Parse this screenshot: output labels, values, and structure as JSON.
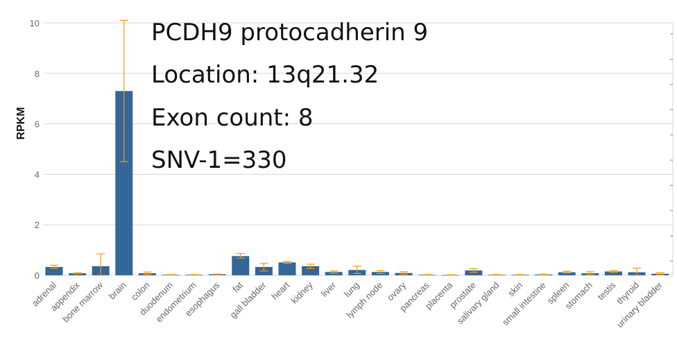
{
  "chart_data": {
    "type": "bar",
    "ylabel": "RPKM",
    "xlabel": "",
    "ylim": [
      0,
      10
    ],
    "yticks": [
      0,
      2,
      4,
      6,
      8,
      10
    ],
    "grid": true,
    "bar_color": "#336699",
    "error_color": "#ff9900",
    "categories": [
      "adrenal",
      "appendix",
      "bone marrow",
      "brain",
      "colon",
      "duodenum",
      "endometrium",
      "esophagus",
      "fat",
      "gall bladder",
      "heart",
      "kidney",
      "liver",
      "lung",
      "lymph node",
      "ovary",
      "pancreas",
      "placenta",
      "prostate",
      "salivary gland",
      "skin",
      "small intestine",
      "spleen",
      "stomach",
      "testis",
      "thyroid",
      "urinary bladder"
    ],
    "values": [
      0.33,
      0.08,
      0.36,
      7.3,
      0.08,
      0.02,
      0.02,
      0.04,
      0.76,
      0.33,
      0.51,
      0.36,
      0.13,
      0.21,
      0.13,
      0.09,
      0.02,
      0.01,
      0.19,
      0.02,
      0.02,
      0.03,
      0.12,
      0.08,
      0.15,
      0.12,
      0.06
    ],
    "error_low": [
      0.28,
      0.06,
      0.0,
      4.5,
      0.04,
      0.01,
      0.01,
      0.03,
      0.68,
      0.17,
      0.47,
      0.27,
      0.08,
      0.07,
      0.07,
      0.04,
      0.01,
      0.0,
      0.12,
      0.01,
      0.01,
      0.01,
      0.09,
      0.03,
      0.11,
      0.0,
      0.02
    ],
    "error_high": [
      0.4,
      0.1,
      0.85,
      10.1,
      0.13,
      0.03,
      0.03,
      0.05,
      0.86,
      0.47,
      0.55,
      0.44,
      0.17,
      0.36,
      0.18,
      0.14,
      0.03,
      0.02,
      0.26,
      0.03,
      0.03,
      0.05,
      0.16,
      0.14,
      0.19,
      0.28,
      0.1
    ]
  },
  "info": {
    "gene_line": "PCDH9 protocadherin 9",
    "location_line": "Location: 13q21.32",
    "exon_line": "Exon count: 8",
    "snv_line": "SNV-1=330"
  }
}
